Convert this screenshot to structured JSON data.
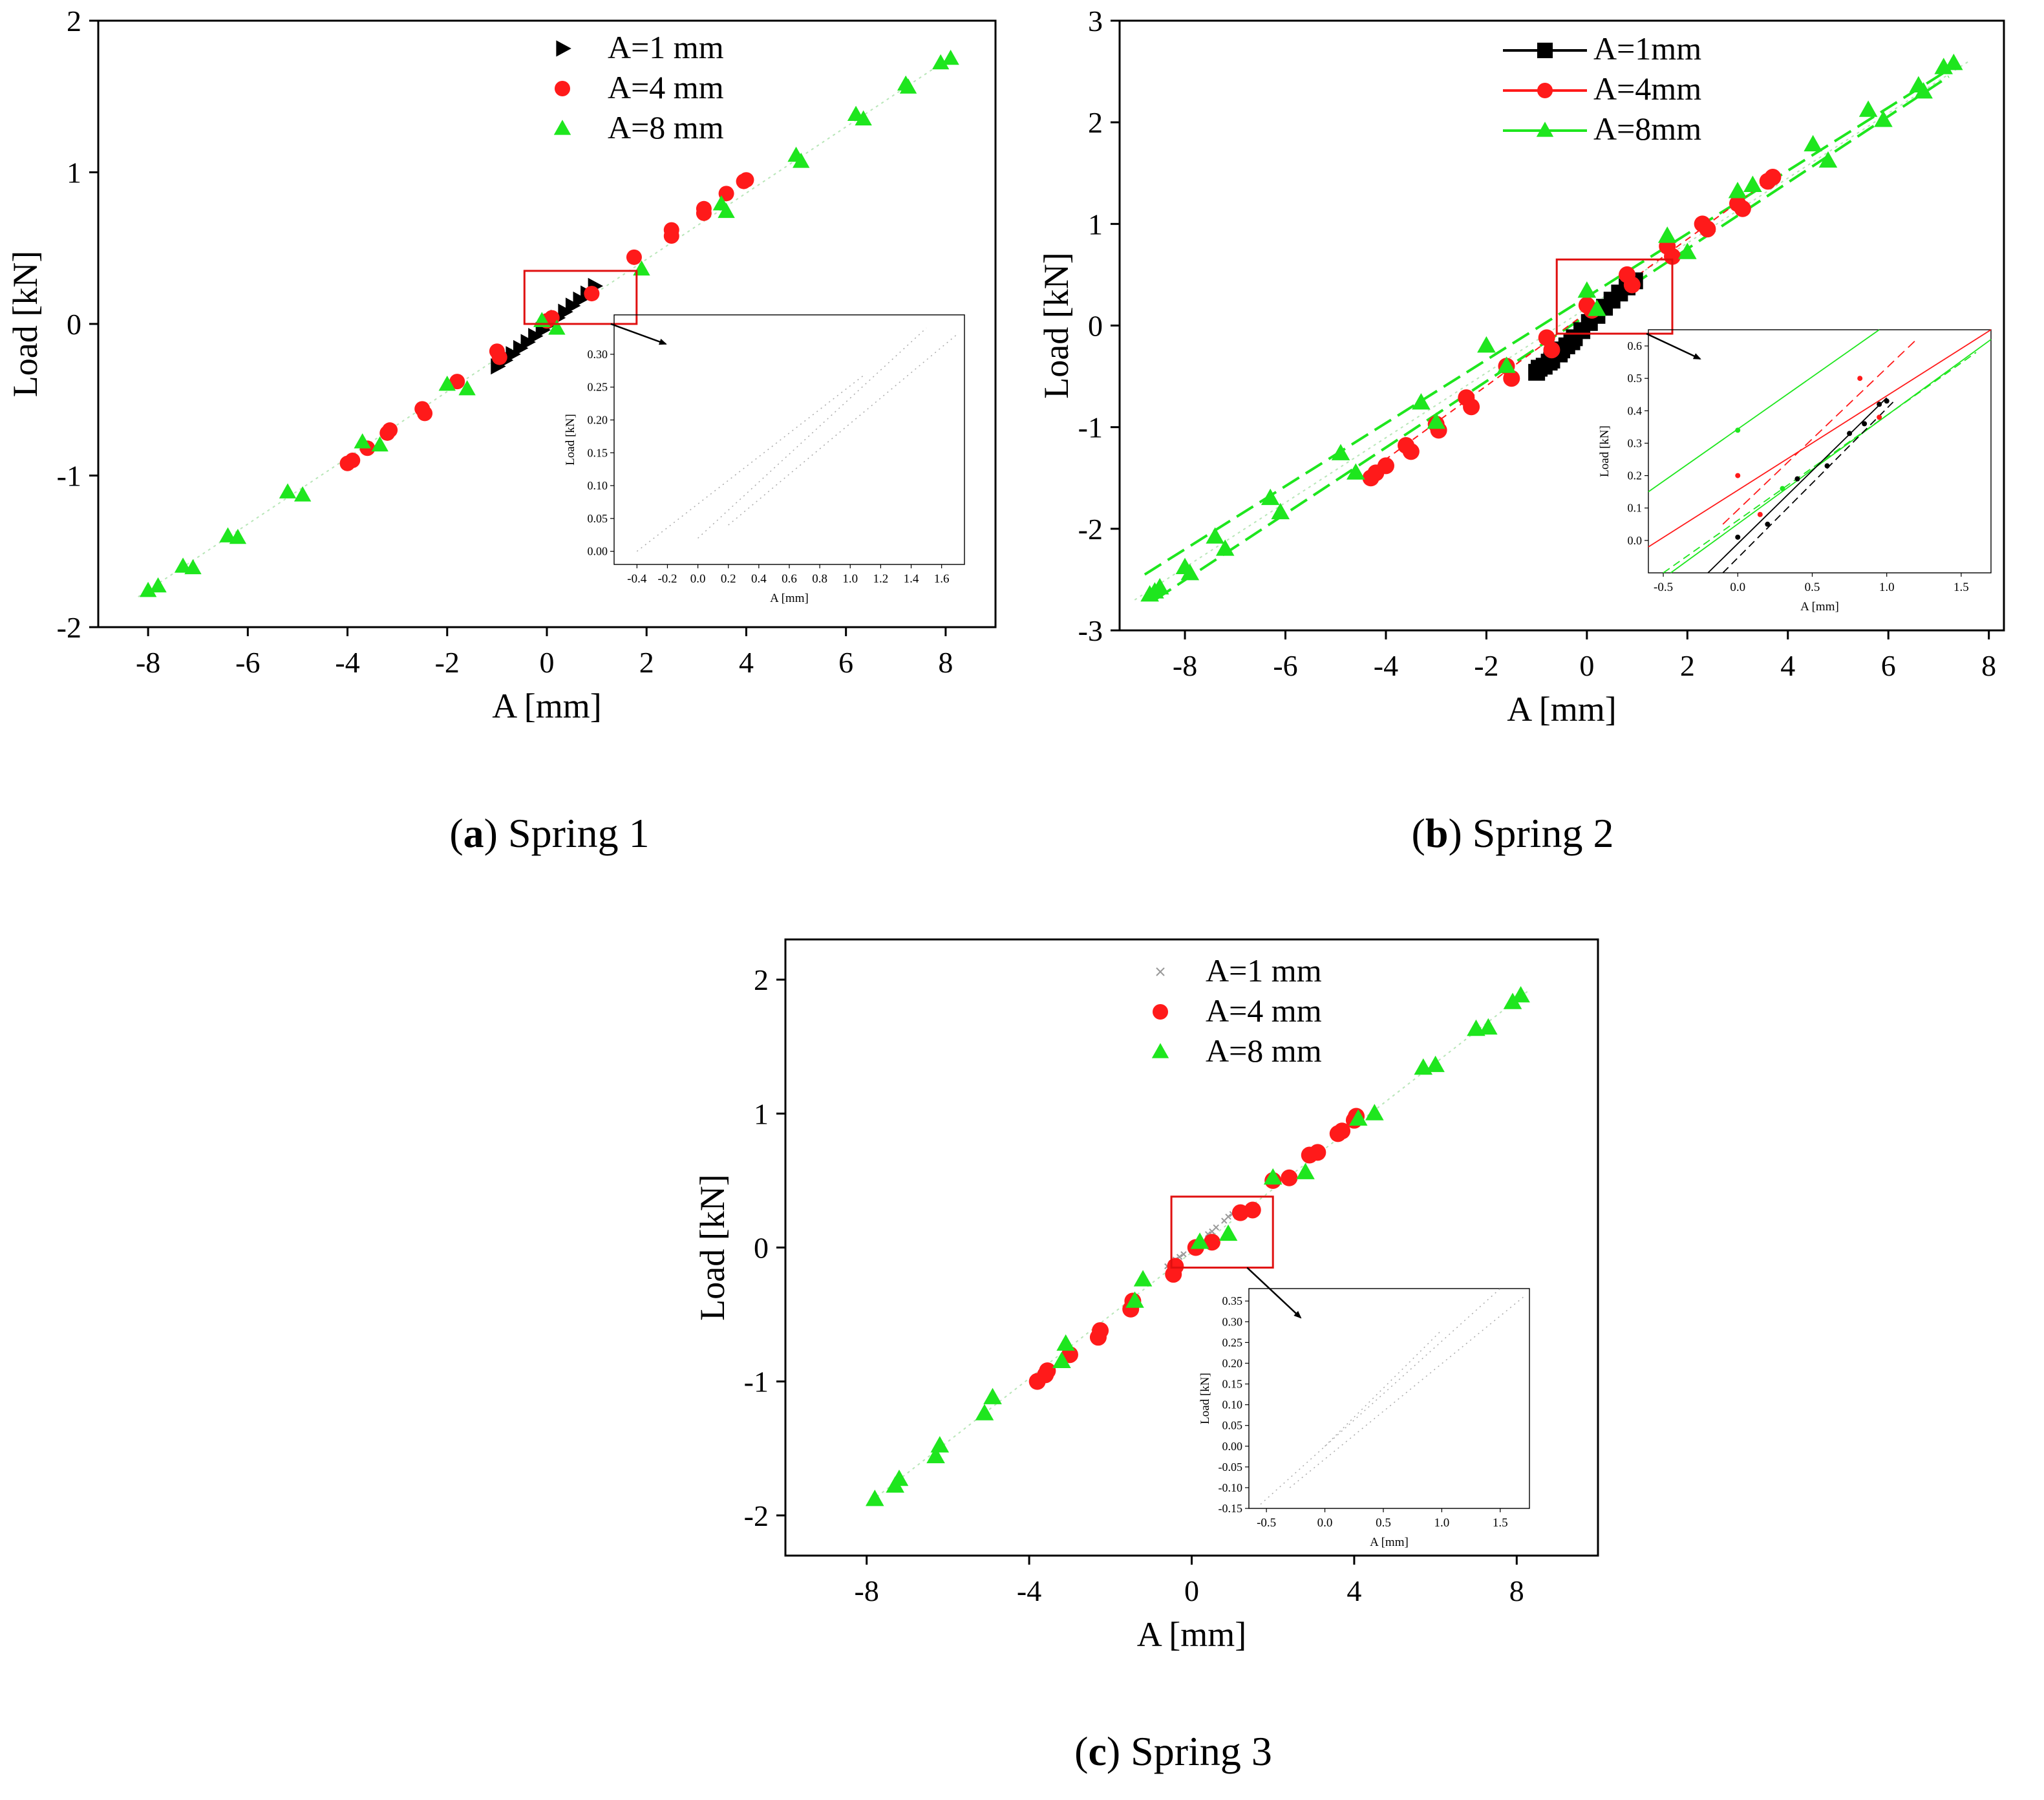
{
  "figure": {
    "captions": [
      {
        "letter": "a",
        "text": " Spring 1"
      },
      {
        "letter": "b",
        "text": " Spring 2"
      },
      {
        "letter": "c",
        "text": " Spring 3"
      }
    ]
  },
  "colors": {
    "a1": "#000000",
    "a4": "#ff1a1a",
    "a8": "#1ee61e",
    "zoom_box": "#e01010"
  },
  "chart_data": [
    {
      "id": "a",
      "type": "scatter",
      "title": "Spring 1",
      "xlabel": "A [mm]",
      "ylabel": "Load [kN]",
      "xlim": [
        -9,
        9
      ],
      "ylim": [
        -2,
        2
      ],
      "xticks": [
        -8,
        -6,
        -4,
        -2,
        0,
        2,
        4,
        6,
        8
      ],
      "yticks": [
        -2,
        -1,
        0,
        1,
        2
      ],
      "legend_position": "top-center",
      "series": [
        {
          "name": "A=1 mm",
          "marker": "triangle-right",
          "color": "#000000",
          "x": [
            -1.0,
            -0.85,
            -0.7,
            -0.55,
            -0.4,
            -0.25,
            -0.1,
            0.05,
            0.2,
            0.35,
            0.5,
            0.65,
            0.8,
            0.95
          ],
          "y": [
            -0.28,
            -0.24,
            -0.2,
            -0.16,
            -0.12,
            -0.08,
            -0.04,
            0.0,
            0.04,
            0.08,
            0.12,
            0.16,
            0.2,
            0.25
          ]
        },
        {
          "name": "A=4 mm",
          "marker": "circle",
          "color": "#ff1a1a",
          "x": [
            -4.0,
            -3.9,
            -3.6,
            -3.2,
            -3.15,
            -2.5,
            -2.45,
            -1.8,
            -1.0,
            -0.95,
            0.0,
            0.1,
            0.9,
            1.75,
            2.5,
            2.5,
            3.15,
            3.15,
            3.6,
            3.95,
            4.0
          ],
          "y": [
            -0.92,
            -0.9,
            -0.82,
            -0.72,
            -0.7,
            -0.56,
            -0.59,
            -0.38,
            -0.18,
            -0.22,
            0.02,
            0.04,
            0.2,
            0.44,
            0.62,
            0.58,
            0.76,
            0.73,
            0.86,
            0.94,
            0.95
          ]
        },
        {
          "name": "A=8 mm",
          "marker": "triangle-up",
          "color": "#1ee61e",
          "x": [
            -8.0,
            -7.8,
            -7.3,
            -7.1,
            -6.4,
            -6.2,
            -5.2,
            -4.9,
            -3.7,
            -3.35,
            -2.0,
            -1.6,
            -0.1,
            0.2,
            1.9,
            3.5,
            3.6,
            5.0,
            5.1,
            6.2,
            6.35,
            7.2,
            7.25,
            7.9,
            8.1
          ],
          "y": [
            -1.76,
            -1.73,
            -1.6,
            -1.61,
            -1.4,
            -1.41,
            -1.11,
            -1.13,
            -0.78,
            -0.8,
            -0.4,
            -0.43,
            0.02,
            -0.03,
            0.36,
            0.79,
            0.74,
            1.11,
            1.07,
            1.38,
            1.35,
            1.58,
            1.56,
            1.72,
            1.75
          ]
        }
      ],
      "zoom_box": {
        "xlim": [
          -0.45,
          1.8
        ],
        "ylim": [
          0.0,
          0.35
        ]
      },
      "inset": {
        "xlabel": "A [mm]",
        "ylabel": "Load [kN]",
        "xlim": [
          -0.55,
          1.75
        ],
        "ylim": [
          -0.02,
          0.36
        ],
        "xticks": [
          "-0.4",
          "-0.2",
          "0.0",
          "0.2",
          "0.4",
          "0.6",
          "0.8",
          "1.0",
          "1.2",
          "1.4",
          "1.6"
        ],
        "yticks": [
          "0.00",
          "0.05",
          "0.10",
          "0.15",
          "0.20",
          "0.25",
          "0.30"
        ]
      }
    },
    {
      "id": "b",
      "type": "scatter",
      "title": "Spring 2",
      "xlabel": "A [mm]",
      "ylabel": "Load [kN]",
      "xlim": [
        -9.3,
        8.3
      ],
      "ylim": [
        -3,
        3
      ],
      "xticks": [
        -8,
        -6,
        -4,
        -2,
        0,
        2,
        4,
        6,
        8
      ],
      "yticks": [
        -3,
        -2,
        -1,
        0,
        1,
        2,
        3
      ],
      "legend_position": "top-left",
      "series": [
        {
          "name": "A=1mm",
          "marker": "square",
          "color": "#000000",
          "x": [
            -1.0,
            -0.85,
            -0.7,
            -0.55,
            -0.4,
            -0.25,
            -0.1,
            0.05,
            0.2,
            0.35,
            0.5,
            0.65,
            0.8,
            0.95,
            -0.95,
            -0.75,
            -0.5,
            -0.3
          ],
          "y": [
            -0.46,
            -0.4,
            -0.34,
            -0.28,
            -0.2,
            -0.12,
            -0.05,
            0.03,
            0.1,
            0.18,
            0.25,
            0.32,
            0.38,
            0.44,
            -0.42,
            -0.36,
            -0.24,
            -0.16
          ]
        },
        {
          "name": "A=4mm",
          "marker": "circle",
          "color": "#ff1a1a",
          "x": [
            -4.3,
            -4.2,
            -4.0,
            -3.6,
            -3.5,
            -3.0,
            -2.95,
            -2.4,
            -2.3,
            -1.6,
            -1.5,
            -0.8,
            -0.7,
            0.0,
            0.1,
            0.8,
            0.9,
            1.6,
            1.7,
            2.3,
            2.4,
            3.0,
            3.1,
            3.6,
            3.7
          ],
          "y": [
            -1.5,
            -1.45,
            -1.38,
            -1.18,
            -1.24,
            -0.97,
            -1.03,
            -0.71,
            -0.8,
            -0.4,
            -0.52,
            -0.12,
            -0.24,
            0.2,
            0.15,
            0.5,
            0.4,
            0.78,
            0.68,
            1.0,
            0.95,
            1.2,
            1.15,
            1.42,
            1.46
          ]
        },
        {
          "name": "A=8mm",
          "marker": "triangle-up",
          "color": "#1ee61e",
          "x": [
            -8.7,
            -8.6,
            -8.5,
            -8.0,
            -7.9,
            -7.4,
            -7.2,
            -6.3,
            -6.1,
            -4.9,
            -4.6,
            -3.3,
            -3.0,
            -2.0,
            -1.6,
            0.0,
            0.2,
            1.6,
            2.0,
            3.0,
            3.3,
            4.5,
            4.8,
            5.6,
            5.9,
            6.6,
            6.7,
            7.1,
            7.3
          ],
          "y": [
            -2.65,
            -2.62,
            -2.58,
            -2.38,
            -2.44,
            -2.08,
            -2.2,
            -1.7,
            -1.84,
            -1.26,
            -1.45,
            -0.76,
            -0.95,
            -0.2,
            -0.4,
            0.34,
            0.16,
            0.88,
            0.72,
            1.32,
            1.38,
            1.78,
            1.62,
            2.12,
            2.02,
            2.36,
            2.3,
            2.54,
            2.58
          ]
        }
      ],
      "zoom_box": {
        "xlim": [
          -0.6,
          1.7
        ],
        "ylim": [
          -0.08,
          0.65
        ]
      },
      "inset": {
        "xlabel": "A [mm]",
        "ylabel": "Load [kN]",
        "xlim": [
          -0.6,
          1.7
        ],
        "ylim": [
          -0.1,
          0.65
        ],
        "xticks": [
          "-0.5",
          "0.0",
          "0.5",
          "1.0",
          "1.5"
        ],
        "yticks": [
          "0.0",
          "0.1",
          "0.2",
          "0.3",
          "0.4",
          "0.5",
          "0.6"
        ]
      }
    },
    {
      "id": "c",
      "type": "scatter",
      "title": "Spring 3",
      "xlabel": "A [mm]",
      "ylabel": "Load [kN]",
      "xlim": [
        -10,
        10
      ],
      "ylim": [
        -2.3,
        2.3
      ],
      "xticks": [
        -8,
        -4,
        0,
        4,
        8
      ],
      "yticks": [
        -2,
        -1,
        0,
        1,
        2
      ],
      "legend_position": "top-center",
      "series": [
        {
          "name": "A=1 mm",
          "marker": "cross",
          "color": "#999999",
          "x": [
            -0.6,
            -0.4,
            -0.2,
            0.0,
            0.2,
            0.4,
            0.6,
            0.8,
            1.0,
            -0.5,
            -0.3,
            0.1,
            0.5,
            0.9
          ],
          "y": [
            -0.14,
            -0.09,
            -0.05,
            0.0,
            0.05,
            0.1,
            0.15,
            0.2,
            0.25,
            -0.12,
            -0.07,
            0.03,
            0.12,
            0.23
          ]
        },
        {
          "name": "A=4 mm",
          "marker": "circle",
          "color": "#ff1a1a",
          "x": [
            -3.8,
            -3.6,
            -3.55,
            -3.0,
            -2.3,
            -2.25,
            -1.5,
            -1.45,
            -0.45,
            -0.4,
            0.1,
            0.5,
            1.2,
            1.5,
            2.0,
            2.4,
            2.9,
            3.1,
            3.6,
            3.7,
            4.0,
            4.05
          ],
          "y": [
            -1.0,
            -0.95,
            -0.92,
            -0.8,
            -0.67,
            -0.62,
            -0.46,
            -0.4,
            -0.2,
            -0.14,
            0.0,
            0.04,
            0.26,
            0.28,
            0.5,
            0.52,
            0.69,
            0.71,
            0.85,
            0.87,
            0.95,
            0.98
          ]
        },
        {
          "name": "A=8 mm",
          "marker": "triangle-up",
          "color": "#1ee61e",
          "x": [
            -7.8,
            -7.3,
            -7.2,
            -6.3,
            -6.2,
            -5.1,
            -4.9,
            -3.2,
            -3.1,
            -1.4,
            -1.2,
            0.2,
            0.9,
            2.0,
            2.8,
            4.1,
            4.5,
            5.7,
            6.0,
            7.0,
            7.3,
            7.9,
            8.1
          ],
          "y": [
            -1.88,
            -1.78,
            -1.73,
            -1.56,
            -1.48,
            -1.24,
            -1.12,
            -0.85,
            -0.72,
            -0.4,
            -0.24,
            0.04,
            0.1,
            0.52,
            0.56,
            0.96,
            1.0,
            1.34,
            1.36,
            1.63,
            1.64,
            1.83,
            1.88
          ]
        }
      ],
      "zoom_box": {
        "xlim": [
          -0.5,
          2.0
        ],
        "ylim": [
          -0.15,
          0.38
        ]
      },
      "inset": {
        "xlabel": "A [mm]",
        "ylabel": "Load [kN]",
        "xlim": [
          -0.65,
          1.75
        ],
        "ylim": [
          -0.15,
          0.38
        ],
        "xticks": [
          "-0.5",
          "0.0",
          "0.5",
          "1.0",
          "1.5"
        ],
        "yticks": [
          "0.35",
          "0.30",
          "0.25",
          "0.20",
          "0.15",
          "0.10",
          "0.05",
          "0.00",
          "-0.05",
          "-0.10",
          "-0.15"
        ]
      }
    }
  ]
}
